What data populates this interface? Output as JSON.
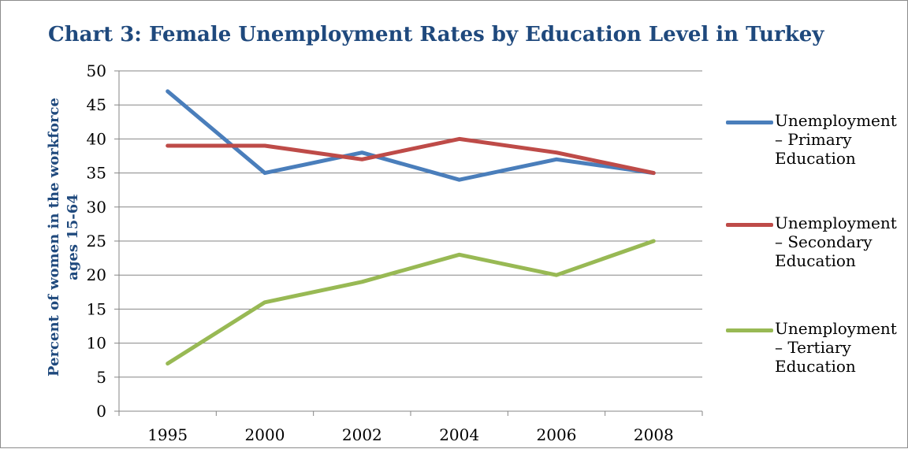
{
  "chart_data": {
    "type": "line",
    "title": "Chart 3: Female Unemployment Rates by Education Level in Turkey",
    "ylabel_lines": [
      "Percent of women in the workforce",
      "ages 15-64"
    ],
    "categories": [
      "1995",
      "2000",
      "2002",
      "2004",
      "2006",
      "2008"
    ],
    "ylim": [
      0,
      50
    ],
    "yticks": [
      "0",
      "5",
      "10",
      "15",
      "20",
      "25",
      "30",
      "35",
      "40",
      "45",
      "50"
    ],
    "grid": true,
    "legend_position": "right",
    "series": [
      {
        "name": "Unemployment – Primary Education",
        "name_lines": [
          "Unemployment",
          "– Primary",
          "Education"
        ],
        "color": "#4a7ebb",
        "values": [
          47,
          35,
          38,
          34,
          37,
          35
        ]
      },
      {
        "name": "Unemployment – Secondary Education",
        "name_lines": [
          "Unemployment",
          "– Secondary",
          "Education"
        ],
        "color": "#be4b48",
        "values": [
          39,
          39,
          37,
          40,
          38,
          35
        ]
      },
      {
        "name": "Unemployment – Tertiary Education",
        "name_lines": [
          "Unemployment",
          "– Tertiary",
          "Education"
        ],
        "color": "#98b954",
        "values": [
          7,
          16,
          19,
          23,
          20,
          25
        ]
      }
    ]
  }
}
